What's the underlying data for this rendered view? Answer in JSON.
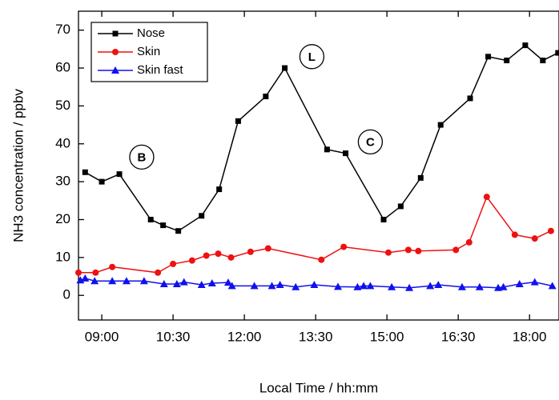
{
  "chart_data": {
    "type": "line",
    "x_label": "Local Time / hh:mm",
    "y_label": "NH3 concentration / ppbv",
    "xlim": [
      8.51,
      18.62
    ],
    "ylim": [
      -6.5,
      75
    ],
    "xticks": [
      {
        "value": 9,
        "label": "09:00"
      },
      {
        "value": 10.5,
        "label": "10:30"
      },
      {
        "value": 12,
        "label": "12:00"
      },
      {
        "value": 13.5,
        "label": "13:30"
      },
      {
        "value": 15,
        "label": "15:00"
      },
      {
        "value": 16.5,
        "label": "16:30"
      },
      {
        "value": 18,
        "label": "18:00"
      }
    ],
    "yticks": [
      0,
      10,
      20,
      30,
      40,
      50,
      60,
      70
    ],
    "legend": "upper left",
    "series": [
      {
        "name": "Nose",
        "color": "#000000",
        "marker": "square",
        "x": [
          8.65,
          9.0,
          9.37,
          10.03,
          10.29,
          10.61,
          11.1,
          11.47,
          11.87,
          12.45,
          12.85,
          13.74,
          14.13,
          14.93,
          15.29,
          15.71,
          16.13,
          16.75,
          17.13,
          17.52,
          17.91,
          18.28,
          18.6
        ],
        "values": [
          32.5,
          30,
          32,
          20,
          18.5,
          17,
          21,
          28,
          46,
          52.5,
          60,
          38.5,
          37.5,
          20,
          23.5,
          31,
          45,
          52,
          63,
          62,
          66,
          62,
          64
        ]
      },
      {
        "name": "Skin",
        "color": "#ee1111",
        "marker": "circle",
        "x": [
          8.51,
          8.87,
          9.22,
          10.18,
          10.5,
          10.9,
          11.2,
          11.45,
          11.72,
          12.13,
          12.5,
          13.62,
          14.09,
          15.03,
          15.45,
          15.66,
          16.45,
          16.73,
          17.1,
          17.69,
          18.11,
          18.45
        ],
        "values": [
          6,
          6,
          7.5,
          6,
          8.3,
          9.2,
          10.5,
          11,
          10,
          11.5,
          12.4,
          9.4,
          12.8,
          11.3,
          12,
          11.7,
          12,
          14,
          26,
          16,
          15,
          17
        ]
      },
      {
        "name": "Skin fast",
        "color": "#1111ee",
        "marker": "triangle",
        "x": [
          8.55,
          8.65,
          8.85,
          9.22,
          9.52,
          9.89,
          10.31,
          10.58,
          10.73,
          11.1,
          11.32,
          11.66,
          11.74,
          12.21,
          12.58,
          12.75,
          13.08,
          13.47,
          13.97,
          14.38,
          14.51,
          14.65,
          15.1,
          15.47,
          15.91,
          16.08,
          16.58,
          16.95,
          17.34,
          17.45,
          17.79,
          18.11,
          18.48
        ],
        "values": [
          4,
          4.5,
          3.8,
          3.8,
          3.8,
          3.8,
          3,
          3,
          3.5,
          2.8,
          3.2,
          3.4,
          2.5,
          2.5,
          2.5,
          2.8,
          2.2,
          2.8,
          2.3,
          2.2,
          2.5,
          2.5,
          2.2,
          2,
          2.5,
          2.8,
          2.2,
          2.2,
          2,
          2.2,
          3,
          3.5,
          2.5
        ]
      }
    ],
    "annotations": [
      {
        "text": "B",
        "x": 9.84,
        "y": 36.5
      },
      {
        "text": "L",
        "x": 13.42,
        "y": 63
      },
      {
        "text": "C",
        "x": 14.65,
        "y": 40.5
      }
    ]
  }
}
